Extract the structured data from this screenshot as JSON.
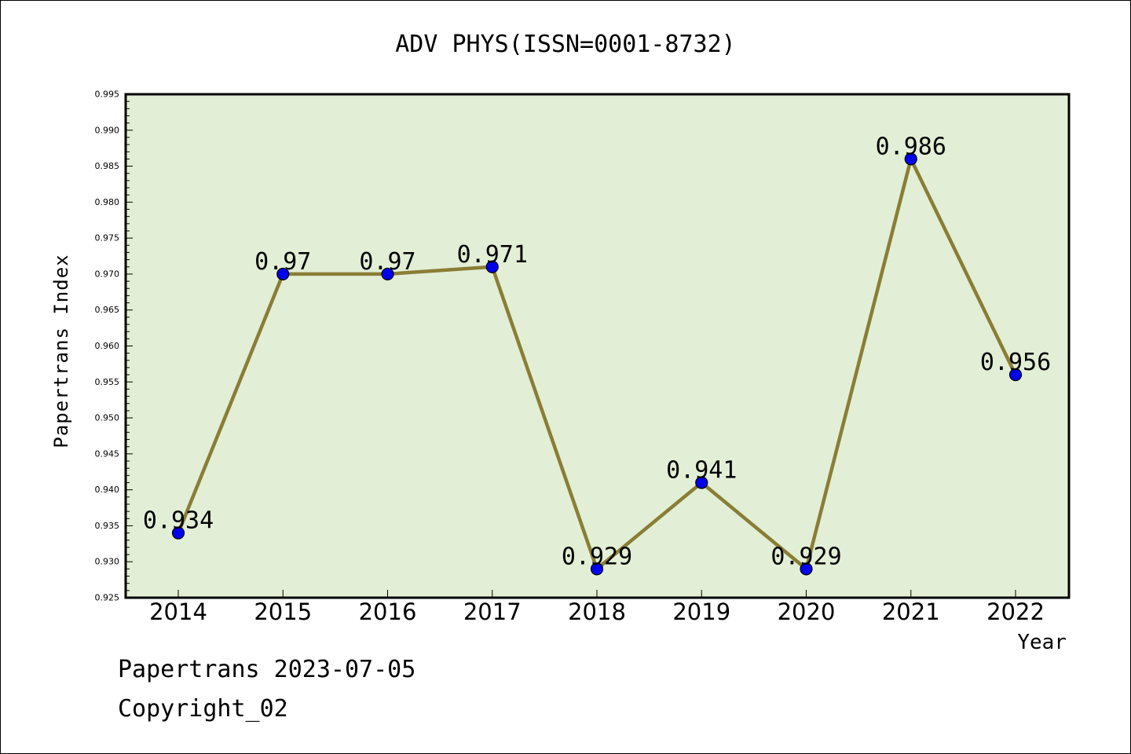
{
  "chart_data": {
    "type": "line",
    "title": "ADV PHYS(ISSN=0001-8732)",
    "xlabel": "Year",
    "ylabel": "Papertrans Index",
    "categories": [
      "2014",
      "2015",
      "2016",
      "2017",
      "2018",
      "2019",
      "2020",
      "2021",
      "2022"
    ],
    "values": [
      0.934,
      0.97,
      0.97,
      0.971,
      0.929,
      0.941,
      0.929,
      0.986,
      0.956
    ],
    "data_labels": [
      "0.934",
      "0.97",
      "0.97",
      "0.971",
      "0.929",
      "0.941",
      "0.929",
      "0.986",
      "0.956"
    ],
    "y_ticks": [
      "0.925",
      "0.930",
      "0.935",
      "0.940",
      "0.945",
      "0.950",
      "0.955",
      "0.960",
      "0.965",
      "0.970",
      "0.975",
      "0.980",
      "0.985",
      "0.990",
      "0.995"
    ],
    "ylim": [
      0.925,
      0.995
    ],
    "grid": false,
    "colors": {
      "plot_background": "#e2efd6",
      "line": "#8a7d35",
      "marker": "#0000ee"
    }
  },
  "footer": {
    "line1": "Papertrans 2023-07-05",
    "line2": "Copyright_02"
  }
}
